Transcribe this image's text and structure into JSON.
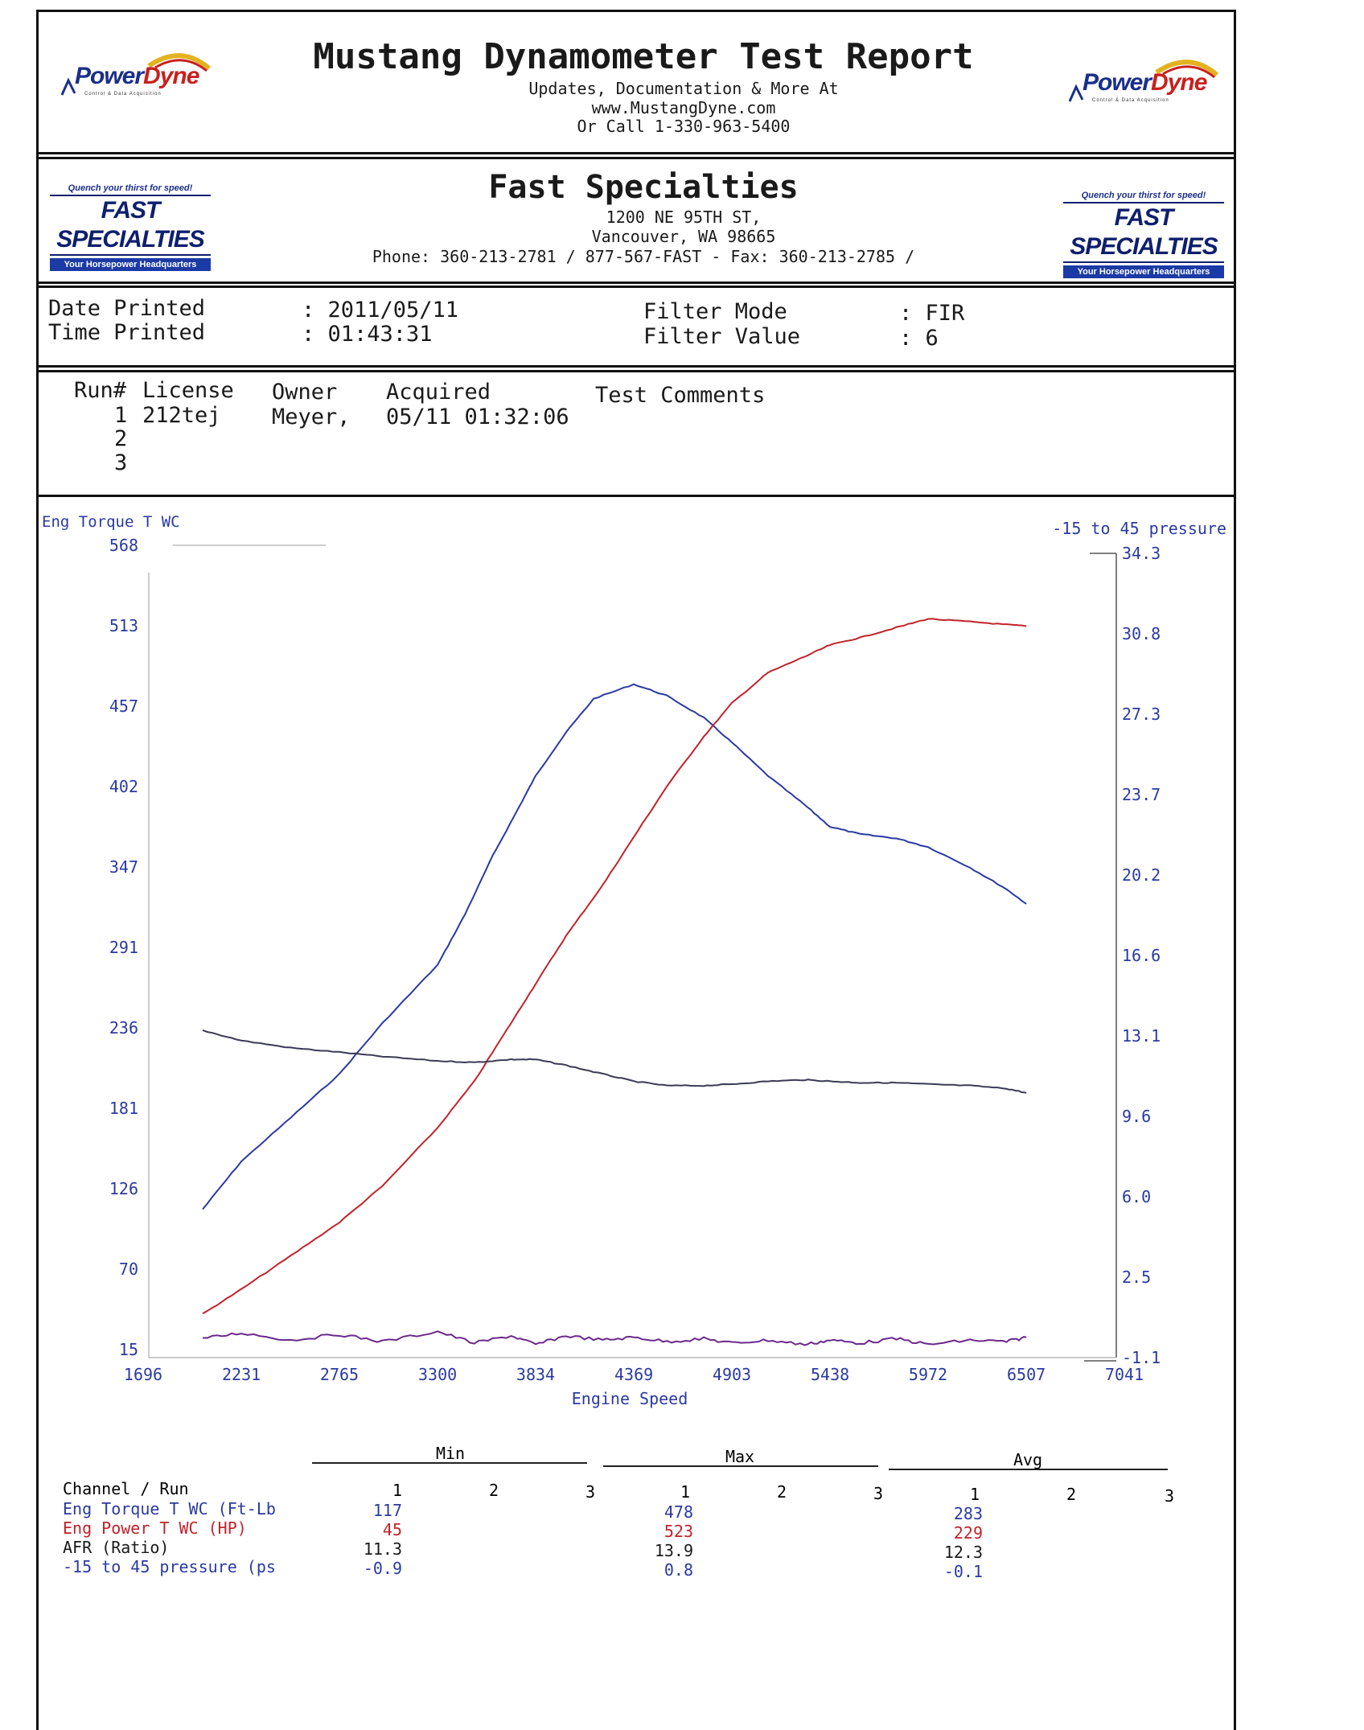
{
  "report": {
    "title": "Mustang Dynamometer Test Report",
    "sub1": "Updates, Documentation & More At",
    "sub2": "www.MustangDyne.com",
    "sub3": "Or Call 1-330-963-5400",
    "logo": {
      "word_a": "Power",
      "word_b": "Dyne",
      "tagline": "Control & Data Acquisition"
    }
  },
  "shop": {
    "name": "Fast Specialties",
    "address1": "1200 NE 95TH ST,",
    "address2": "Vancouver, WA  98665",
    "phone": "Phone: 360-213-2781 / 877-567-FAST - Fax: 360-213-2785 /",
    "logo": {
      "slogan": "Quench your thirst for speed!",
      "word": "FAST SPECIALTIES",
      "banner": "Your Horsepower Headquarters"
    }
  },
  "print": {
    "date_label": "Date Printed",
    "date_value": ": 2011/05/11",
    "time_label": "Time Printed",
    "time_value": ": 01:43:31",
    "filter_mode_label": "Filter Mode",
    "filter_mode_value": ": FIR",
    "filter_value_label": "Filter Value",
    "filter_value_value": ": 6"
  },
  "runs": {
    "headers": {
      "run": "Run#",
      "license": "License",
      "owner": "Owner",
      "acquired": "Acquired",
      "comments": "Test Comments"
    },
    "rows": [
      {
        "run": "1",
        "license": "212tej",
        "owner": "Meyer,",
        "acquired": "05/11 01:32:06"
      },
      {
        "run": "2"
      },
      {
        "run": "3"
      }
    ]
  },
  "chart_data": {
    "type": "line",
    "left_axis_label": "Eng Torque T WC",
    "right_axis_label": "-15 to 45 pressure",
    "xlabel": "Engine Speed",
    "x_ticks": [
      1696,
      2231,
      2765,
      3300,
      3834,
      4369,
      4903,
      5438,
      5972,
      6507,
      7041
    ],
    "left_ticks": [
      568,
      513,
      457,
      402,
      347,
      291,
      236,
      181,
      126,
      70,
      15
    ],
    "right_ticks": [
      "34.3",
      "30.8",
      "27.3",
      "23.7",
      "20.2",
      "16.6",
      "13.1",
      "9.6",
      "6.0",
      "2.5",
      "-1.1"
    ],
    "xlim": [
      1696,
      7041
    ],
    "ylim_left": [
      15,
      568
    ],
    "ylim_right": [
      -1.1,
      34.3
    ],
    "series": [
      {
        "name": "Eng Torque T WC",
        "color": "#2a3aa0",
        "axis": "left",
        "x": [
          2020,
          2231,
          2500,
          2765,
          3000,
          3300,
          3450,
          3600,
          3750,
          3834,
          4000,
          4150,
          4369,
          4550,
          4750,
          4903,
          5100,
          5300,
          5438,
          5600,
          5800,
          5972,
          6200,
          6400,
          6507
        ],
        "values": [
          117,
          150,
          180,
          210,
          245,
          285,
          320,
          360,
          395,
          415,
          445,
          468,
          478,
          470,
          455,
          438,
          415,
          395,
          380,
          375,
          372,
          366,
          352,
          337,
          327
        ]
      },
      {
        "name": "Eng Power T WC",
        "color": "#c0232b",
        "axis": "left",
        "x": [
          2020,
          2231,
          2500,
          2765,
          3000,
          3300,
          3500,
          3700,
          3834,
          4000,
          4200,
          4369,
          4550,
          4750,
          4903,
          5100,
          5300,
          5438,
          5600,
          5800,
          5972,
          6200,
          6400,
          6507
        ],
        "values": [
          45,
          62,
          85,
          108,
          133,
          173,
          205,
          245,
          272,
          305,
          340,
          373,
          408,
          442,
          465,
          486,
          497,
          505,
          510,
          517,
          523,
          521,
          519,
          518
        ]
      },
      {
        "name": "AFR",
        "color": "#3a3a55",
        "axis": "left",
        "x": [
          2020,
          2231,
          2500,
          2765,
          3000,
          3300,
          3500,
          3700,
          3834,
          4000,
          4200,
          4369,
          4550,
          4750,
          4903,
          5100,
          5300,
          5438,
          5600,
          5800,
          5972,
          6200,
          6400,
          6507
        ],
        "values": [
          240,
          233,
          228,
          225,
          222,
          219,
          218,
          220,
          220,
          216,
          210,
          205,
          202,
          202,
          203,
          205,
          206,
          205,
          204,
          204,
          203,
          202,
          200,
          197
        ]
      },
      {
        "name": "-15 to 45 pressure",
        "color": "#6a2a8a",
        "axis": "left",
        "x": [
          2020,
          2231,
          2500,
          2765,
          3000,
          3300,
          3500,
          3700,
          3834,
          4000,
          4200,
          4369,
          4550,
          4750,
          4903,
          5100,
          5300,
          5438,
          5600,
          5800,
          5972,
          6200,
          6400,
          6507
        ],
        "values": [
          28,
          32,
          27,
          31,
          26,
          33,
          25,
          30,
          24,
          30,
          27,
          29,
          26,
          28,
          25,
          27,
          24,
          27,
          25,
          28,
          24,
          27,
          26,
          29
        ]
      }
    ]
  },
  "summary": {
    "groups": [
      "Min",
      "Max",
      "Avg"
    ],
    "channel_header": "Channel / Run",
    "run_labels": [
      "1",
      "2",
      "3"
    ],
    "rows": [
      {
        "channel": "Eng Torque T WC (Ft-Lb",
        "color": "#2a3aa0",
        "min": "117",
        "max": "478",
        "avg": "283"
      },
      {
        "channel": "Eng Power T WC (HP)",
        "color": "#c0232b",
        "min": "45",
        "max": "523",
        "avg": "229"
      },
      {
        "channel": "AFR (Ratio)",
        "color": "#1a1a1a",
        "min": "11.3",
        "max": "13.9",
        "avg": "12.3"
      },
      {
        "channel": "-15 to 45 pressure (ps",
        "color": "#2a3aa0",
        "min": "-0.9",
        "max": "0.8",
        "avg": "-0.1"
      }
    ]
  }
}
